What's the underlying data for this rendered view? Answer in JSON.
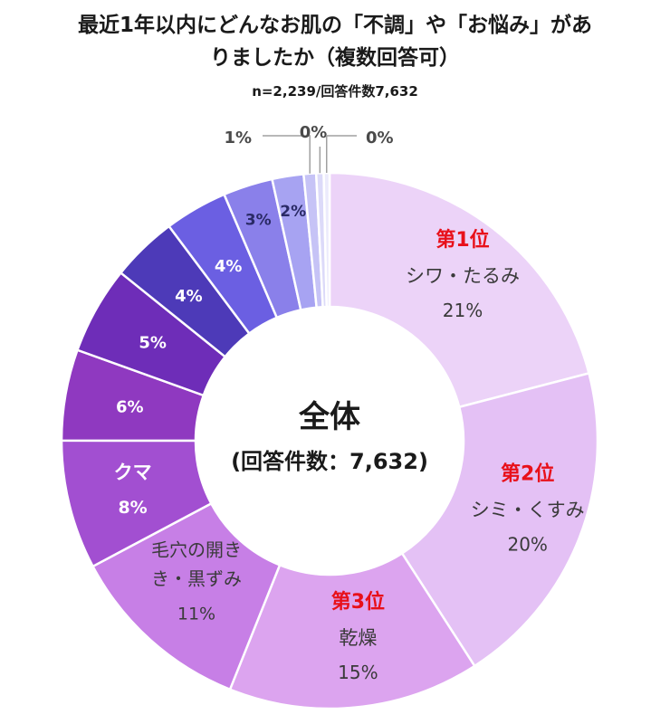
{
  "title_line1": "最近1年以内にどんなお肌の「不調」や「お悩み」があ",
  "title_line2": "りましたか（複数回答可）",
  "subtitle": "n=2,239/回答件数7,632",
  "center_label_main": "全体",
  "center_label_sub": "(回答件数：7,632)",
  "colors": {
    "rank_red": "#e8101a",
    "text_dark": "#3a3a3a",
    "text_white": "#ffffff"
  },
  "chart_data": {
    "type": "pie",
    "variant": "donut",
    "unit": "%",
    "categories": [
      "シワ・たるみ",
      "シミ・くすみ",
      "乾燥",
      "毛穴の開き・黒ずみ",
      "クマ",
      "",
      "",
      "",
      "",
      "",
      "",
      "",
      "",
      ""
    ],
    "values": [
      21,
      20,
      15,
      11,
      8,
      6,
      5,
      4,
      4,
      3,
      2,
      1,
      0,
      0
    ],
    "display_labels": [
      "21%",
      "20%",
      "15%",
      "11%",
      "8%",
      "6%",
      "5%",
      "4%",
      "4%",
      "3%",
      "2%",
      "1%",
      "0%",
      "0%"
    ],
    "rank_labels": [
      "第1位",
      "第2位",
      "第3位",
      "",
      "",
      "",
      "",
      "",
      "",
      "",
      "",
      "",
      "",
      ""
    ],
    "slice_colors": [
      "#ecd3f8",
      "#e4c1f5",
      "#dca4ef",
      "#c77fe6",
      "#a24fd1",
      "#8f39c0",
      "#6e2db8",
      "#4d3ab8",
      "#6b5fe2",
      "#8a80ea",
      "#a7a3f2",
      "#c6c3f6",
      "#dcdaf9",
      "#ecebfc"
    ]
  }
}
